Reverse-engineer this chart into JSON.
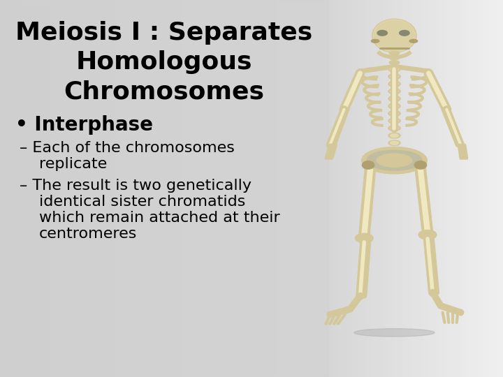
{
  "bg_color_left": "#d0d0d0",
  "bg_color_right": "#e8e8e8",
  "panel_bg": "#d3d3d3",
  "title_line1": "Meiosis I : Separates",
  "title_line2": "Homologous",
  "title_line3": "Chromosomes",
  "title_fontsize": 26,
  "title_color": "#000000",
  "bullet1": "Interphase",
  "bullet1_fontsize": 20,
  "sub1_line1": "– Each of the chromosomes",
  "sub1_line2": "   replicate",
  "sub2_line1": "– The result is two genetically",
  "sub2_line2": "   identical sister chromatids",
  "sub2_line3": "   which remain attached at their",
  "sub2_line4": "   centromeres",
  "sub_fontsize": 16,
  "text_color": "#000000",
  "bone_color": "#d4c89a",
  "bone_shadow": "#b0a070",
  "bone_highlight": "#f0e8c0"
}
